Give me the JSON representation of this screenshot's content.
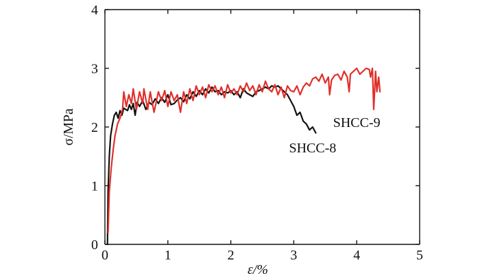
{
  "chart_data": {
    "type": "line",
    "title": "",
    "xlabel": "ε/%",
    "ylabel": "σ/MPa",
    "xlim": [
      0,
      5
    ],
    "ylim": [
      0,
      4
    ],
    "xticks": [
      "0",
      "1",
      "2",
      "3",
      "4",
      "5"
    ],
    "yticks": [
      "0",
      "1",
      "2",
      "3",
      "4"
    ],
    "grid": false,
    "series": [
      {
        "name": "SHCC-8",
        "color": "#111111",
        "x": [
          0.04,
          0.05,
          0.07,
          0.09,
          0.12,
          0.15,
          0.18,
          0.21,
          0.24,
          0.27,
          0.3,
          0.33,
          0.36,
          0.39,
          0.42,
          0.45,
          0.48,
          0.51,
          0.55,
          0.6,
          0.65,
          0.7,
          0.75,
          0.8,
          0.85,
          0.9,
          0.95,
          1.0,
          1.05,
          1.1,
          1.15,
          1.2,
          1.25,
          1.3,
          1.35,
          1.4,
          1.45,
          1.5,
          1.55,
          1.6,
          1.65,
          1.7,
          1.75,
          1.8,
          1.85,
          1.9,
          1.95,
          2.0,
          2.05,
          2.1,
          2.15,
          2.2,
          2.25,
          2.3,
          2.35,
          2.4,
          2.45,
          2.5,
          2.55,
          2.6,
          2.65,
          2.7,
          2.75,
          2.8,
          2.85,
          2.9,
          2.95,
          3.0,
          3.05,
          3.1,
          3.15,
          3.2,
          3.25,
          3.3,
          3.35
        ],
        "y": [
          0.0,
          0.9,
          1.5,
          1.85,
          2.05,
          2.2,
          2.25,
          2.15,
          2.28,
          2.2,
          2.32,
          2.3,
          2.28,
          2.38,
          2.3,
          2.4,
          2.2,
          2.42,
          2.35,
          2.45,
          2.3,
          2.42,
          2.38,
          2.48,
          2.4,
          2.5,
          2.42,
          2.55,
          2.38,
          2.4,
          2.46,
          2.5,
          2.43,
          2.55,
          2.48,
          2.6,
          2.52,
          2.62,
          2.55,
          2.65,
          2.58,
          2.68,
          2.6,
          2.62,
          2.55,
          2.6,
          2.58,
          2.62,
          2.55,
          2.6,
          2.5,
          2.65,
          2.58,
          2.55,
          2.52,
          2.6,
          2.62,
          2.65,
          2.68,
          2.65,
          2.7,
          2.68,
          2.7,
          2.65,
          2.6,
          2.55,
          2.45,
          2.35,
          2.2,
          2.25,
          2.1,
          2.05,
          1.95,
          2.0,
          1.9
        ]
      },
      {
        "name": "SHCC-9",
        "color": "#e0302a",
        "x": [
          0.05,
          0.07,
          0.1,
          0.13,
          0.16,
          0.2,
          0.24,
          0.28,
          0.3,
          0.34,
          0.38,
          0.42,
          0.45,
          0.5,
          0.55,
          0.6,
          0.62,
          0.68,
          0.72,
          0.78,
          0.85,
          0.9,
          0.95,
          1.0,
          1.05,
          1.1,
          1.15,
          1.2,
          1.25,
          1.3,
          1.35,
          1.4,
          1.45,
          1.5,
          1.55,
          1.6,
          1.65,
          1.7,
          1.75,
          1.8,
          1.85,
          1.9,
          1.95,
          2.0,
          2.05,
          2.1,
          2.15,
          2.2,
          2.25,
          2.3,
          2.35,
          2.4,
          2.45,
          2.5,
          2.55,
          2.6,
          2.65,
          2.7,
          2.75,
          2.8,
          2.85,
          2.9,
          2.95,
          3.0,
          3.05,
          3.1,
          3.15,
          3.2,
          3.25,
          3.3,
          3.35,
          3.4,
          3.45,
          3.5,
          3.55,
          3.57,
          3.6,
          3.65,
          3.7,
          3.75,
          3.8,
          3.85,
          3.88,
          3.9,
          3.95,
          4.0,
          4.05,
          4.1,
          4.15,
          4.2,
          4.22,
          4.25,
          4.27,
          4.3,
          4.32,
          4.35,
          4.37
        ],
        "y": [
          0.2,
          0.9,
          1.3,
          1.6,
          1.85,
          2.05,
          2.15,
          2.3,
          2.6,
          2.35,
          2.55,
          2.4,
          2.65,
          2.3,
          2.6,
          2.4,
          2.65,
          2.3,
          2.6,
          2.25,
          2.6,
          2.45,
          2.62,
          2.35,
          2.6,
          2.45,
          2.55,
          2.25,
          2.6,
          2.4,
          2.65,
          2.45,
          2.7,
          2.55,
          2.68,
          2.5,
          2.72,
          2.6,
          2.7,
          2.55,
          2.68,
          2.5,
          2.72,
          2.58,
          2.65,
          2.55,
          2.7,
          2.6,
          2.75,
          2.62,
          2.7,
          2.55,
          2.72,
          2.6,
          2.78,
          2.65,
          2.6,
          2.72,
          2.55,
          2.68,
          2.5,
          2.7,
          2.62,
          2.6,
          2.7,
          2.55,
          2.68,
          2.75,
          2.7,
          2.82,
          2.85,
          2.78,
          2.9,
          2.75,
          2.85,
          2.55,
          2.8,
          2.88,
          2.9,
          2.8,
          2.95,
          2.85,
          2.6,
          2.9,
          2.95,
          3.0,
          2.9,
          2.95,
          3.0,
          2.98,
          2.85,
          3.0,
          2.3,
          2.95,
          2.6,
          2.85,
          2.6
        ]
      }
    ],
    "annotations": [
      {
        "text": "SHCC-8",
        "series": "SHCC-8",
        "x": 3.3,
        "y": 1.65
      },
      {
        "text": "SHCC-9",
        "series": "SHCC-9",
        "x": 4.0,
        "y": 2.08
      }
    ]
  }
}
